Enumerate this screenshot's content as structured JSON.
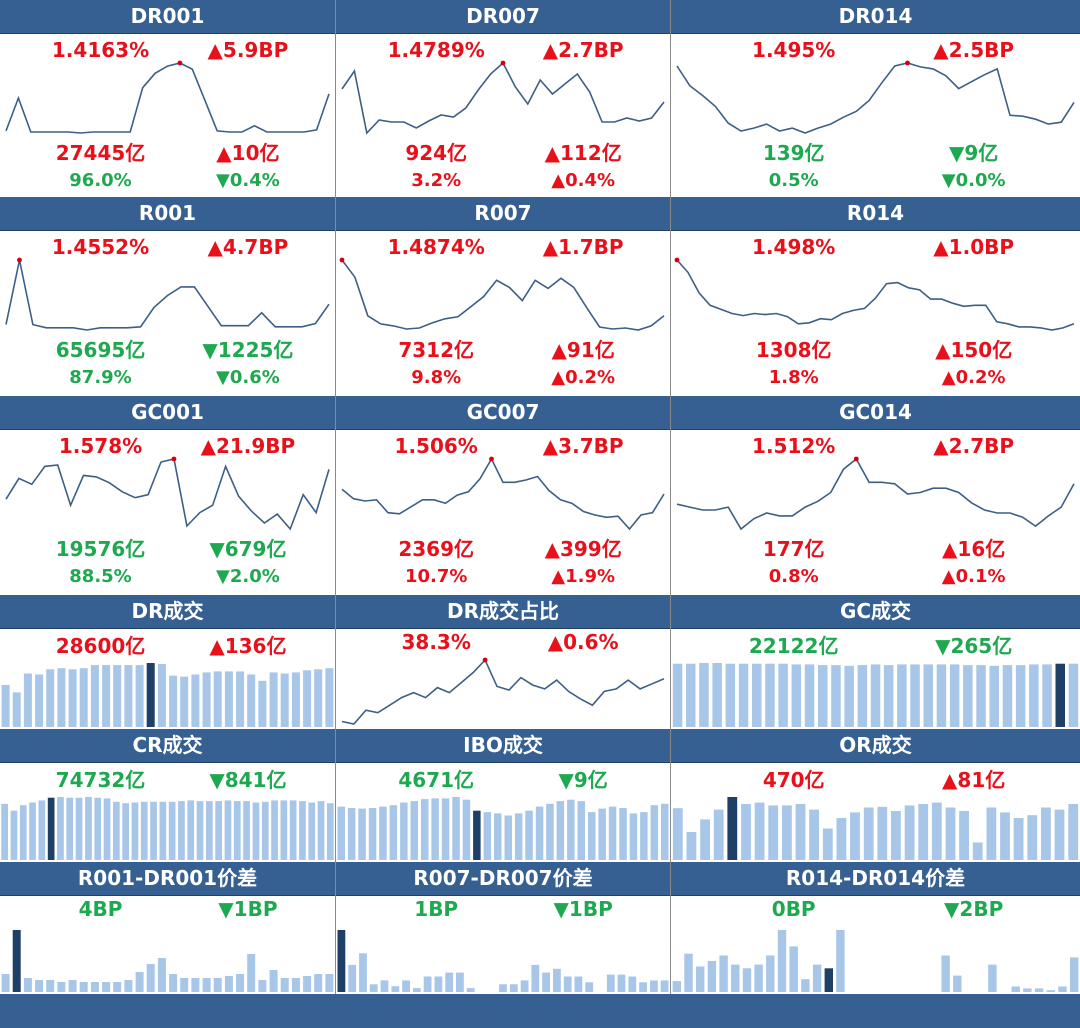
{
  "colors": {
    "up": "#e8101b",
    "down": "#1ea84f",
    "header": "#366092",
    "line": "#3d5f86",
    "marker": "#d4000d",
    "bar": "#a7c6e8",
    "bar_highlight": "#1e3f66"
  },
  "panels": [
    {
      "key": "dr001",
      "title": "DR001",
      "rate": {
        "text": "1.4163%",
        "dir": "up"
      },
      "rate_chg": {
        "text": "▲5.9BP",
        "dir": "up"
      },
      "vol": {
        "text": "27445亿",
        "dir": "up"
      },
      "vol_chg": {
        "text": "▲10亿",
        "dir": "up"
      },
      "share": {
        "text": "96.0%",
        "dir": "down"
      },
      "share_chg": {
        "text": "▼0.4%",
        "dir": "down"
      }
    },
    {
      "key": "dr007",
      "title": "DR007",
      "rate": {
        "text": "1.4789%",
        "dir": "up"
      },
      "rate_chg": {
        "text": "▲2.7BP",
        "dir": "up"
      },
      "vol": {
        "text": "924亿",
        "dir": "up"
      },
      "vol_chg": {
        "text": "▲112亿",
        "dir": "up"
      },
      "share": {
        "text": "3.2%",
        "dir": "up"
      },
      "share_chg": {
        "text": "▲0.4%",
        "dir": "up"
      }
    },
    {
      "key": "dr014",
      "title": "DR014",
      "rate": {
        "text": "1.495%",
        "dir": "up"
      },
      "rate_chg": {
        "text": "▲2.5BP",
        "dir": "up"
      },
      "vol": {
        "text": "139亿",
        "dir": "down"
      },
      "vol_chg": {
        "text": "▼9亿",
        "dir": "down"
      },
      "share": {
        "text": "0.5%",
        "dir": "down"
      },
      "share_chg": {
        "text": "▼0.0%",
        "dir": "down"
      }
    },
    {
      "key": "r001",
      "title": "R001",
      "rate": {
        "text": "1.4552%",
        "dir": "up"
      },
      "rate_chg": {
        "text": "▲4.7BP",
        "dir": "up"
      },
      "vol": {
        "text": "65695亿",
        "dir": "down"
      },
      "vol_chg": {
        "text": "▼1225亿",
        "dir": "down"
      },
      "share": {
        "text": "87.9%",
        "dir": "down"
      },
      "share_chg": {
        "text": "▼0.6%",
        "dir": "down"
      }
    },
    {
      "key": "r007",
      "title": "R007",
      "rate": {
        "text": "1.4874%",
        "dir": "up"
      },
      "rate_chg": {
        "text": "▲1.7BP",
        "dir": "up"
      },
      "vol": {
        "text": "7312亿",
        "dir": "up"
      },
      "vol_chg": {
        "text": "▲91亿",
        "dir": "up"
      },
      "share": {
        "text": "9.8%",
        "dir": "up"
      },
      "share_chg": {
        "text": "▲0.2%",
        "dir": "up"
      }
    },
    {
      "key": "r014",
      "title": "R014",
      "rate": {
        "text": "1.498%",
        "dir": "up"
      },
      "rate_chg": {
        "text": "▲1.0BP",
        "dir": "up"
      },
      "vol": {
        "text": "1308亿",
        "dir": "up"
      },
      "vol_chg": {
        "text": "▲150亿",
        "dir": "up"
      },
      "share": {
        "text": "1.8%",
        "dir": "up"
      },
      "share_chg": {
        "text": "▲0.2%",
        "dir": "up"
      }
    },
    {
      "key": "gc001",
      "title": "GC001",
      "rate": {
        "text": "1.578%",
        "dir": "up"
      },
      "rate_chg": {
        "text": "▲21.9BP",
        "dir": "up"
      },
      "vol": {
        "text": "19576亿",
        "dir": "down"
      },
      "vol_chg": {
        "text": "▼679亿",
        "dir": "down"
      },
      "share": {
        "text": "88.5%",
        "dir": "down"
      },
      "share_chg": {
        "text": "▼2.0%",
        "dir": "down"
      }
    },
    {
      "key": "gc007",
      "title": "GC007",
      "rate": {
        "text": "1.506%",
        "dir": "up"
      },
      "rate_chg": {
        "text": "▲3.7BP",
        "dir": "up"
      },
      "vol": {
        "text": "2369亿",
        "dir": "up"
      },
      "vol_chg": {
        "text": "▲399亿",
        "dir": "up"
      },
      "share": {
        "text": "10.7%",
        "dir": "up"
      },
      "share_chg": {
        "text": "▲1.9%",
        "dir": "up"
      }
    },
    {
      "key": "gc014",
      "title": "GC014",
      "rate": {
        "text": "1.512%",
        "dir": "up"
      },
      "rate_chg": {
        "text": "▲2.7BP",
        "dir": "up"
      },
      "vol": {
        "text": "177亿",
        "dir": "up"
      },
      "vol_chg": {
        "text": "▲16亿",
        "dir": "up"
      },
      "share": {
        "text": "0.8%",
        "dir": "up"
      },
      "share_chg": {
        "text": "▲0.1%",
        "dir": "up"
      }
    },
    {
      "key": "dr_volume",
      "title": "DR成交",
      "main": {
        "text": "28600亿",
        "dir": "up"
      },
      "change": {
        "text": "▲136亿",
        "dir": "up"
      }
    },
    {
      "key": "dr_share",
      "title": "DR成交占比",
      "main": {
        "text": "38.3%",
        "dir": "up"
      },
      "change": {
        "text": "▲0.6%",
        "dir": "up"
      }
    },
    {
      "key": "gc_volume",
      "title": "GC成交",
      "main": {
        "text": "22122亿",
        "dir": "down"
      },
      "change": {
        "text": "▼265亿",
        "dir": "down"
      }
    },
    {
      "key": "cr_volume",
      "title": "CR成交",
      "main": {
        "text": "74732亿",
        "dir": "down"
      },
      "change": {
        "text": "▼841亿",
        "dir": "down"
      }
    },
    {
      "key": "ibo_volume",
      "title": "IBO成交",
      "main": {
        "text": "4671亿",
        "dir": "down"
      },
      "change": {
        "text": "▼9亿",
        "dir": "down"
      }
    },
    {
      "key": "or_volume",
      "title": "OR成交",
      "main": {
        "text": "470亿",
        "dir": "up"
      },
      "change": {
        "text": "▲81亿",
        "dir": "up"
      }
    },
    {
      "key": "spread_001",
      "title": "R001-DR001价差",
      "main": {
        "text": "4BP",
        "dir": "down"
      },
      "change": {
        "text": "▼1BP",
        "dir": "down"
      }
    },
    {
      "key": "spread_007",
      "title": "R007-DR007价差",
      "main": {
        "text": "1BP",
        "dir": "down"
      },
      "change": {
        "text": "▼1BP",
        "dir": "down"
      }
    },
    {
      "key": "spread_014",
      "title": "R014-DR014价差",
      "main": {
        "text": "0BP",
        "dir": "down"
      },
      "change": {
        "text": "▼2BP",
        "dir": "down"
      }
    }
  ],
  "chart_data": [
    {
      "panel": "dr001",
      "type": "line",
      "values": [
        10,
        42,
        9,
        9,
        9,
        9,
        8,
        9,
        9,
        9,
        9,
        52,
        66,
        73,
        76,
        70,
        40,
        10,
        9,
        9,
        15,
        9,
        9,
        9,
        9,
        11,
        46
      ],
      "highlight_index": 14
    },
    {
      "panel": "dr007",
      "type": "line",
      "values": [
        53,
        71,
        9,
        22,
        20,
        20,
        14,
        21,
        27,
        25,
        34,
        52,
        68,
        79,
        55,
        38,
        62,
        48,
        58,
        68,
        50,
        20,
        20,
        24,
        21,
        24,
        40
      ],
      "highlight_index": 13
    },
    {
      "panel": "dr014",
      "type": "line",
      "values": [
        75,
        55,
        45,
        34,
        17,
        9,
        12,
        16,
        9,
        12,
        7,
        12,
        16,
        23,
        29,
        40,
        58,
        75,
        78,
        74,
        72,
        65,
        52,
        59,
        66,
        72,
        25,
        24,
        21,
        16,
        18,
        38
      ],
      "highlight_index": 18
    },
    {
      "panel": "r001",
      "type": "line",
      "values": [
        19,
        79,
        19,
        16,
        16,
        16,
        14,
        16,
        16,
        16,
        17,
        35,
        46,
        54,
        54,
        36,
        18,
        18,
        18,
        30,
        17,
        17,
        17,
        20,
        38
      ],
      "highlight_index": 1
    },
    {
      "panel": "r007",
      "type": "line",
      "values": [
        80,
        63,
        25,
        17,
        15,
        12,
        13,
        18,
        22,
        24,
        34,
        44,
        60,
        53,
        40,
        60,
        52,
        62,
        53,
        33,
        14,
        12,
        13,
        11,
        15,
        25
      ],
      "highlight_index": 0
    },
    {
      "panel": "r014",
      "type": "line",
      "values": [
        82,
        70,
        50,
        38,
        34,
        30,
        28,
        30,
        29,
        30,
        27,
        20,
        21,
        25,
        24,
        30,
        33,
        35,
        45,
        59,
        60,
        55,
        53,
        44,
        44,
        40,
        37,
        38,
        38,
        22,
        20,
        17,
        17,
        16,
        14,
        16,
        20
      ],
      "highlight_index": 0
    },
    {
      "panel": "gc001",
      "type": "line",
      "values": [
        33,
        47,
        43,
        55,
        56,
        29,
        49,
        48,
        44,
        38,
        34,
        36,
        58,
        60,
        15,
        24,
        29,
        55,
        35,
        25,
        17,
        23,
        13,
        36,
        24,
        53
      ],
      "highlight_index": 13
    },
    {
      "panel": "gc007",
      "type": "line",
      "values": [
        31,
        23,
        21,
        22,
        11,
        10,
        16,
        22,
        22,
        19,
        26,
        29,
        40,
        57,
        37,
        37,
        39,
        42,
        30,
        22,
        19,
        12,
        9,
        7,
        8,
        -3,
        9,
        11,
        27
      ],
      "highlight_index": 13
    },
    {
      "panel": "gc014",
      "type": "line",
      "values": [
        30,
        28,
        26,
        26,
        28,
        13,
        20,
        24,
        22,
        22,
        28,
        32,
        38,
        54,
        61,
        45,
        45,
        44,
        37,
        38,
        41,
        41,
        38,
        31,
        26,
        24,
        24,
        21,
        15,
        22,
        28,
        44
      ],
      "highlight_index": 14
    },
    {
      "panel": "dr_volume",
      "type": "bar",
      "values": [
        40,
        33,
        51,
        50,
        55,
        56,
        55,
        56,
        59,
        59,
        59,
        59,
        59,
        61,
        60,
        49,
        48,
        50,
        52,
        53,
        53,
        53,
        50,
        44,
        52,
        51,
        52,
        54,
        55,
        56
      ],
      "highlight_index": 13
    },
    {
      "panel": "dr_share",
      "type": "line",
      "values": [
        33.7,
        33.5,
        34.6,
        34.4,
        35.0,
        35.6,
        36.0,
        35.6,
        36.4,
        36.0,
        36.8,
        37.6,
        38.6,
        36.5,
        36.2,
        37.2,
        36.6,
        36.3,
        37.0,
        36.1,
        35.5,
        35.0,
        36.1,
        36.3,
        37.0,
        36.3,
        36.7,
        37.1
      ],
      "highlight_index": 12
    },
    {
      "panel": "gc_volume",
      "type": "bar",
      "values": [
        90,
        90,
        91,
        91,
        90,
        90,
        90,
        90,
        90,
        89,
        89,
        88,
        88,
        87,
        88,
        89,
        88,
        89,
        89,
        89,
        89,
        89,
        88,
        88,
        87,
        88,
        88,
        89,
        89,
        90,
        90
      ],
      "highlight_index": 29
    },
    {
      "panel": "cr_volume",
      "type": "bar",
      "values": [
        82,
        72,
        80,
        84,
        87,
        91,
        92,
        91,
        91,
        92,
        91,
        90,
        85,
        83,
        84,
        85,
        85,
        85,
        85,
        86,
        87,
        86,
        86,
        86,
        87,
        86,
        86,
        84,
        85,
        87,
        87,
        87,
        86,
        84,
        86,
        83
      ],
      "highlight_index": 5
    },
    {
      "panel": "ibo_volume",
      "type": "bar",
      "values": [
        78,
        76,
        75,
        76,
        78,
        80,
        84,
        86,
        89,
        90,
        90,
        92,
        88,
        72,
        70,
        68,
        65,
        68,
        72,
        78,
        82,
        86,
        88,
        86,
        70,
        75,
        78,
        76,
        68,
        70,
        80,
        82
      ],
      "highlight_index": 13
    },
    {
      "panel": "or_volume",
      "type": "bar",
      "values": [
        74,
        40,
        58,
        72,
        90,
        80,
        82,
        78,
        78,
        80,
        72,
        45,
        60,
        68,
        75,
        76,
        70,
        78,
        80,
        82,
        75,
        70,
        25,
        75,
        68,
        60,
        64,
        75,
        72,
        80
      ],
      "highlight_index": 4
    },
    {
      "panel": "spread_001",
      "type": "bar",
      "values": [
        9,
        31,
        7,
        6,
        6,
        5,
        6,
        5,
        5,
        5,
        5,
        6,
        10,
        14,
        17,
        9,
        7,
        7,
        7,
        7,
        8,
        9,
        19,
        6,
        11,
        7,
        7,
        8,
        9,
        9
      ],
      "highlight_index": 1
    },
    {
      "panel": "spread_007",
      "type": "bar",
      "values": [
        32,
        14,
        20,
        4,
        6,
        3,
        6,
        2,
        8,
        8,
        10,
        10,
        2,
        0,
        0,
        4,
        4,
        6,
        14,
        10,
        12,
        8,
        8,
        5,
        0,
        9,
        9,
        8,
        5,
        6,
        6
      ],
      "highlight_index": 0
    },
    {
      "panel": "spread_014",
      "type": "bar",
      "values": [
        6,
        21,
        14,
        17,
        20,
        15,
        13,
        15,
        20,
        34,
        25,
        7,
        15,
        13,
        34,
        0,
        0,
        0,
        0,
        0,
        0,
        0,
        0,
        20,
        9,
        0,
        0,
        15,
        0,
        3,
        2,
        2,
        1,
        3,
        19
      ],
      "highlight_index": 13
    }
  ]
}
